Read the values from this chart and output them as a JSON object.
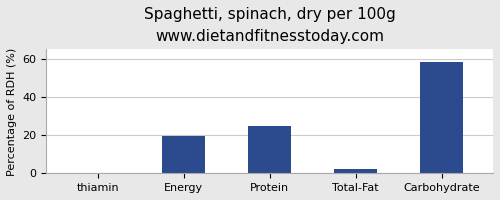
{
  "title": "Spaghetti, spinach, dry per 100g",
  "subtitle": "www.dietandfitnesstoday.com",
  "categories": [
    "thiamin",
    "Energy",
    "Protein",
    "Total-Fat",
    "Carbohydrate"
  ],
  "values": [
    0.3,
    19.5,
    25.0,
    2.5,
    58.5
  ],
  "bar_color": "#2b4b8e",
  "ylabel": "Percentage of RDH (%)",
  "ylim": [
    0,
    65
  ],
  "yticks": [
    0,
    20,
    40,
    60
  ],
  "background_color": "#e8e8e8",
  "plot_bg_color": "#ffffff",
  "title_fontsize": 11,
  "subtitle_fontsize": 9,
  "tick_fontsize": 8,
  "ylabel_fontsize": 8
}
